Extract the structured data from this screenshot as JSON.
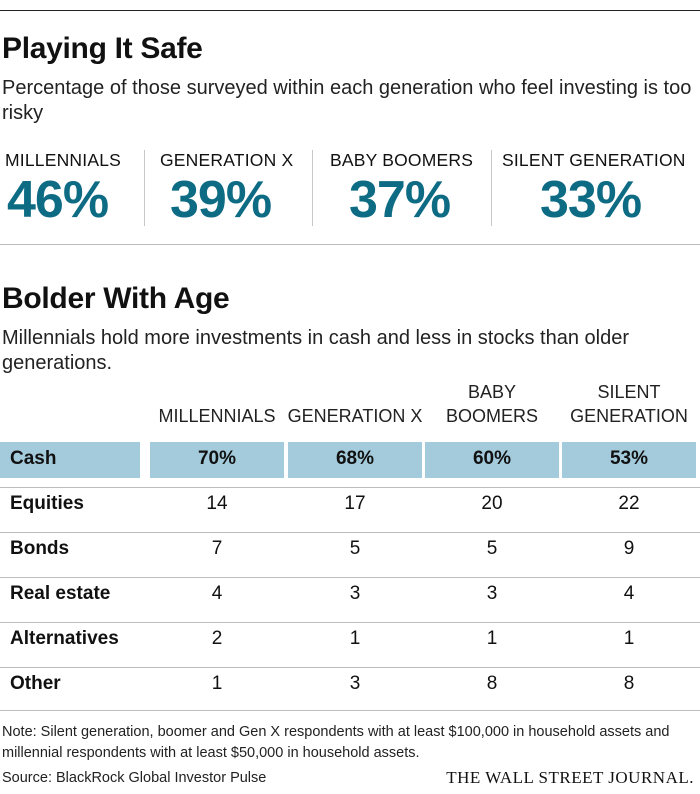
{
  "section1": {
    "title": "Playing It Safe",
    "subtitle": "Percentage of those surveyed within each generation who feel investing is too risky"
  },
  "section2": {
    "title": "Bolder With Age",
    "subtitle": "Millennials hold more investments in cash and less in stocks than older generations."
  },
  "column_headers": [
    [
      "MILLENNIALS"
    ],
    [
      "GENERATION X"
    ],
    [
      "BABY",
      "BOOMERS"
    ],
    [
      "SILENT",
      "GENERATION"
    ]
  ],
  "footer": {
    "note": "Note: Silent generation, boomer and Gen X respondents with at least $100,000 in household assets and millennial respondents with at least $50,000 in household assets.",
    "source": "Source:  BlackRock Global Investor Pulse",
    "brand": "THE WALL STREET JOURNAL."
  },
  "colors": {
    "accent": "#0e6b84",
    "cash_highlight": "#a3cbdc"
  },
  "chart_data": [
    {
      "type": "table",
      "title": "Playing It Safe",
      "categories": [
        "MILLENNIALS",
        "GENERATION X",
        "BABY BOOMERS",
        "SILENT GENERATION"
      ],
      "values": [
        46,
        39,
        37,
        33
      ],
      "labels": [
        "46%",
        "39%",
        "37%",
        "33%"
      ]
    },
    {
      "type": "table",
      "title": "Bolder With Age",
      "columns": [
        "MILLENNIALS",
        "GENERATION X",
        "BABY BOOMERS",
        "SILENT GENERATION"
      ],
      "rows": [
        {
          "label": "Cash",
          "values": [
            "70%",
            "68%",
            "60%",
            "53%"
          ],
          "highlight": true
        },
        {
          "label": "Equities",
          "values": [
            "14",
            "17",
            "20",
            "22"
          ]
        },
        {
          "label": "Bonds",
          "values": [
            "7",
            "5",
            "5",
            "9"
          ]
        },
        {
          "label": "Real estate",
          "values": [
            "4",
            "3",
            "3",
            "4"
          ]
        },
        {
          "label": "Alternatives",
          "values": [
            "2",
            "1",
            "1",
            "1"
          ]
        },
        {
          "label": "Other",
          "values": [
            "1",
            "3",
            "8",
            "8"
          ]
        }
      ]
    }
  ]
}
